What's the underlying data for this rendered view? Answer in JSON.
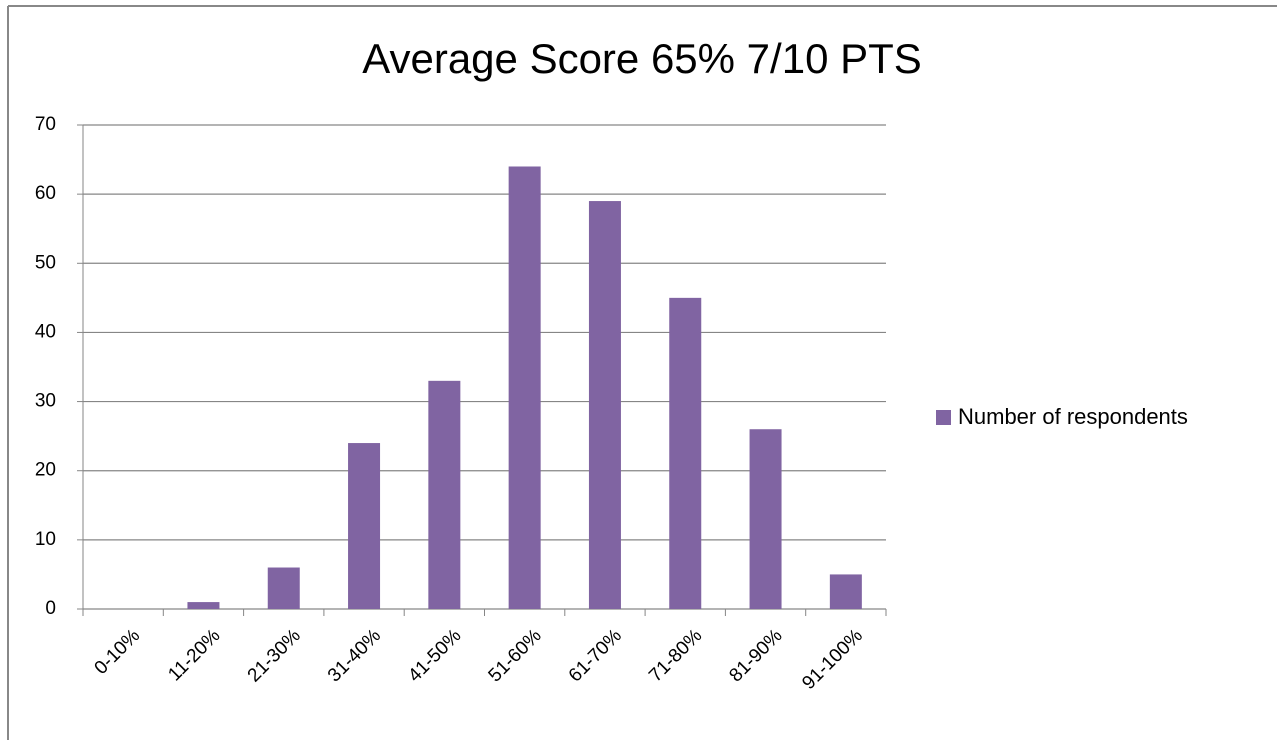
{
  "chart_data": {
    "type": "bar",
    "title": "Average Score 65% 7/10 PTS",
    "categories": [
      "0-10%",
      "11-20%",
      "21-30%",
      "31-40%",
      "41-50%",
      "51-60%",
      "61-70%",
      "71-80%",
      "81-90%",
      "91-100%"
    ],
    "series": [
      {
        "name": "Number of respondents",
        "color": "#8064a2",
        "values": [
          0,
          1,
          6,
          24,
          33,
          64,
          59,
          45,
          26,
          5
        ]
      }
    ],
    "ylim": [
      0,
      70
    ],
    "yticks": [
      0,
      10,
      20,
      30,
      40,
      50,
      60,
      70
    ],
    "grid": true,
    "legend": "right"
  }
}
